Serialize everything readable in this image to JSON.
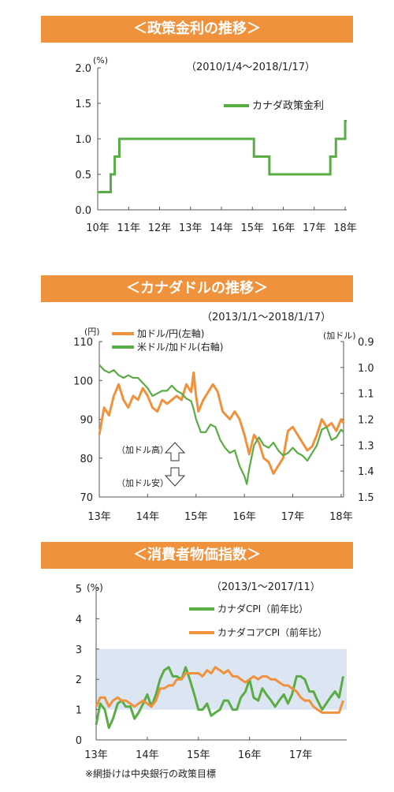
{
  "colors": {
    "banner": "#f0913c",
    "green": "#5aac44",
    "orange": "#f0913c",
    "band": "#dce6f2",
    "text": "#222222"
  },
  "panels": {
    "rate": {
      "banner": "＜政策金利の推移＞",
      "period": "（2010/1/4～2018/1/17）"
    },
    "fx": {
      "banner": "＜カナダドルの推移＞",
      "period": "（2013/1/1～2018/1/17）",
      "arrow_up_label": "（加ドル高）",
      "arrow_down_label": "（加ドル安）"
    },
    "cpi": {
      "banner": "＜消費者物価指数＞",
      "period": "（2013/1～2017/11）",
      "note": "※網掛けは中央銀行の政策目標"
    }
  },
  "chart_data": [
    {
      "type": "line",
      "title": "＜政策金利の推移＞",
      "ylabel": "(%)",
      "ylim": [
        0,
        2.0
      ],
      "yticks": [
        "0.0",
        "0.5",
        "1.0",
        "1.5",
        "2.0"
      ],
      "xticks": [
        "10年",
        "11年",
        "12年",
        "13年",
        "14年",
        "15年",
        "16年",
        "17年",
        "18年"
      ],
      "step": true,
      "series": [
        {
          "name": "カナダ政策金利",
          "color": "#5aac44",
          "points": [
            [
              2010.0,
              0.25
            ],
            [
              2010.42,
              0.5
            ],
            [
              2010.55,
              0.75
            ],
            [
              2010.7,
              1.0
            ],
            [
              2015.05,
              0.75
            ],
            [
              2015.55,
              0.5
            ],
            [
              2017.52,
              0.75
            ],
            [
              2017.7,
              1.0
            ],
            [
              2018.0,
              1.25
            ],
            [
              2018.05,
              1.25
            ]
          ]
        }
      ]
    },
    {
      "type": "line",
      "title": "＜カナダドルの推移＞",
      "ylabel_left": "(円)",
      "ylabel_right": "(加ドル)",
      "ylim_left": [
        70,
        110
      ],
      "ylim_right": [
        0.9,
        1.5
      ],
      "right_axis_inverted": true,
      "yticks_left": [
        "70",
        "80",
        "90",
        "100",
        "110"
      ],
      "yticks_right": [
        "0.9",
        "1.0",
        "1.1",
        "1.2",
        "1.3",
        "1.4",
        "1.5"
      ],
      "xticks": [
        "13年",
        "14年",
        "15年",
        "16年",
        "17年",
        "18年"
      ],
      "series": [
        {
          "name": "加ドル/円(左軸)",
          "color": "#f0913c",
          "axis": "left",
          "points": [
            [
              2013.0,
              86
            ],
            [
              2013.1,
              93
            ],
            [
              2013.2,
              91
            ],
            [
              2013.3,
              96
            ],
            [
              2013.4,
              99
            ],
            [
              2013.5,
              95
            ],
            [
              2013.6,
              93
            ],
            [
              2013.7,
              96
            ],
            [
              2013.8,
              95
            ],
            [
              2013.9,
              98
            ],
            [
              2014.0,
              96
            ],
            [
              2014.1,
              93
            ],
            [
              2014.2,
              92
            ],
            [
              2014.3,
              95
            ],
            [
              2014.4,
              94
            ],
            [
              2014.5,
              95
            ],
            [
              2014.6,
              96
            ],
            [
              2014.7,
              95
            ],
            [
              2014.8,
              99
            ],
            [
              2014.9,
              97
            ],
            [
              2014.95,
              102
            ],
            [
              2015.0,
              96
            ],
            [
              2015.05,
              92
            ],
            [
              2015.15,
              95
            ],
            [
              2015.25,
              97
            ],
            [
              2015.35,
              99
            ],
            [
              2015.45,
              97
            ],
            [
              2015.55,
              92
            ],
            [
              2015.7,
              90
            ],
            [
              2015.8,
              92
            ],
            [
              2015.9,
              90
            ],
            [
              2016.0,
              86
            ],
            [
              2016.1,
              81
            ],
            [
              2016.2,
              86
            ],
            [
              2016.3,
              84
            ],
            [
              2016.4,
              80
            ],
            [
              2016.5,
              79
            ],
            [
              2016.6,
              76
            ],
            [
              2016.7,
              78
            ],
            [
              2016.8,
              80
            ],
            [
              2016.9,
              87
            ],
            [
              2017.0,
              88
            ],
            [
              2017.1,
              86
            ],
            [
              2017.2,
              84
            ],
            [
              2017.3,
              82
            ],
            [
              2017.4,
              83
            ],
            [
              2017.5,
              86
            ],
            [
              2017.6,
              90
            ],
            [
              2017.7,
              88
            ],
            [
              2017.8,
              89
            ],
            [
              2017.9,
              87
            ],
            [
              2018.0,
              90
            ],
            [
              2018.05,
              89
            ]
          ]
        },
        {
          "name": "米ドル/加ドル(右軸)",
          "color": "#5aac44",
          "axis": "right",
          "points": [
            [
              2013.0,
              0.99
            ],
            [
              2013.1,
              1.01
            ],
            [
              2013.2,
              1.02
            ],
            [
              2013.3,
              1.01
            ],
            [
              2013.4,
              1.03
            ],
            [
              2013.5,
              1.04
            ],
            [
              2013.6,
              1.03
            ],
            [
              2013.7,
              1.04
            ],
            [
              2013.8,
              1.04
            ],
            [
              2013.9,
              1.06
            ],
            [
              2014.0,
              1.08
            ],
            [
              2014.1,
              1.11
            ],
            [
              2014.2,
              1.1
            ],
            [
              2014.3,
              1.09
            ],
            [
              2014.4,
              1.09
            ],
            [
              2014.5,
              1.07
            ],
            [
              2014.6,
              1.09
            ],
            [
              2014.7,
              1.1
            ],
            [
              2014.8,
              1.12
            ],
            [
              2014.9,
              1.13
            ],
            [
              2014.95,
              1.16
            ],
            [
              2015.0,
              1.2
            ],
            [
              2015.1,
              1.25
            ],
            [
              2015.2,
              1.25
            ],
            [
              2015.3,
              1.22
            ],
            [
              2015.4,
              1.23
            ],
            [
              2015.5,
              1.28
            ],
            [
              2015.6,
              1.31
            ],
            [
              2015.7,
              1.33
            ],
            [
              2015.8,
              1.32
            ],
            [
              2015.9,
              1.38
            ],
            [
              2016.0,
              1.42
            ],
            [
              2016.05,
              1.45
            ],
            [
              2016.1,
              1.39
            ],
            [
              2016.2,
              1.3
            ],
            [
              2016.3,
              1.27
            ],
            [
              2016.4,
              1.3
            ],
            [
              2016.5,
              1.31
            ],
            [
              2016.6,
              1.29
            ],
            [
              2016.7,
              1.32
            ],
            [
              2016.8,
              1.34
            ],
            [
              2016.9,
              1.33
            ],
            [
              2017.0,
              1.31
            ],
            [
              2017.1,
              1.33
            ],
            [
              2017.2,
              1.34
            ],
            [
              2017.3,
              1.36
            ],
            [
              2017.4,
              1.33
            ],
            [
              2017.5,
              1.3
            ],
            [
              2017.6,
              1.24
            ],
            [
              2017.7,
              1.23
            ],
            [
              2017.8,
              1.28
            ],
            [
              2017.9,
              1.27
            ],
            [
              2018.0,
              1.24
            ],
            [
              2018.05,
              1.25
            ]
          ]
        }
      ]
    },
    {
      "type": "line",
      "title": "＜消費者物価指数＞",
      "ylabel": "(%)",
      "ylim": [
        0,
        5
      ],
      "yticks": [
        "0",
        "1",
        "2",
        "3",
        "4",
        "5"
      ],
      "xticks": [
        "13年",
        "14年",
        "15年",
        "16年",
        "17年"
      ],
      "band": [
        1,
        3
      ],
      "series": [
        {
          "name": "カナダCPI（前年比）",
          "color": "#5aac44",
          "points": [
            [
              2013.0,
              0.5
            ],
            [
              2013.08,
              1.2
            ],
            [
              2013.17,
              1.0
            ],
            [
              2013.25,
              0.4
            ],
            [
              2013.33,
              0.7
            ],
            [
              2013.42,
              1.2
            ],
            [
              2013.5,
              1.3
            ],
            [
              2013.58,
              1.1
            ],
            [
              2013.67,
              1.1
            ],
            [
              2013.75,
              0.7
            ],
            [
              2013.83,
              0.9
            ],
            [
              2013.92,
              1.2
            ],
            [
              2014.0,
              1.5
            ],
            [
              2014.08,
              1.1
            ],
            [
              2014.17,
              1.5
            ],
            [
              2014.25,
              2.0
            ],
            [
              2014.33,
              2.3
            ],
            [
              2014.42,
              2.4
            ],
            [
              2014.5,
              2.1
            ],
            [
              2014.58,
              2.1
            ],
            [
              2014.67,
              2.0
            ],
            [
              2014.75,
              2.4
            ],
            [
              2014.83,
              2.0
            ],
            [
              2014.92,
              1.5
            ],
            [
              2015.0,
              1.0
            ],
            [
              2015.08,
              1.0
            ],
            [
              2015.17,
              1.2
            ],
            [
              2015.25,
              0.8
            ],
            [
              2015.33,
              0.9
            ],
            [
              2015.42,
              1.0
            ],
            [
              2015.5,
              1.3
            ],
            [
              2015.58,
              1.3
            ],
            [
              2015.67,
              1.0
            ],
            [
              2015.75,
              1.0
            ],
            [
              2015.83,
              1.4
            ],
            [
              2015.92,
              1.6
            ],
            [
              2016.0,
              2.0
            ],
            [
              2016.08,
              1.4
            ],
            [
              2016.17,
              1.3
            ],
            [
              2016.25,
              1.7
            ],
            [
              2016.33,
              1.5
            ],
            [
              2016.42,
              1.3
            ],
            [
              2016.5,
              1.1
            ],
            [
              2016.58,
              1.3
            ],
            [
              2016.67,
              1.5
            ],
            [
              2016.75,
              1.2
            ],
            [
              2016.83,
              1.5
            ],
            [
              2016.92,
              2.1
            ],
            [
              2017.0,
              2.1
            ],
            [
              2017.08,
              2.0
            ],
            [
              2017.17,
              1.6
            ],
            [
              2017.25,
              1.6
            ],
            [
              2017.33,
              1.3
            ],
            [
              2017.42,
              1.0
            ],
            [
              2017.5,
              1.2
            ],
            [
              2017.58,
              1.4
            ],
            [
              2017.67,
              1.6
            ],
            [
              2017.75,
              1.4
            ],
            [
              2017.83,
              2.1
            ]
          ]
        },
        {
          "name": "カナダコアCPI（前年比）",
          "color": "#f0913c",
          "points": [
            [
              2013.0,
              1.1
            ],
            [
              2013.08,
              1.4
            ],
            [
              2013.17,
              1.4
            ],
            [
              2013.25,
              1.1
            ],
            [
              2013.33,
              1.3
            ],
            [
              2013.42,
              1.4
            ],
            [
              2013.5,
              1.3
            ],
            [
              2013.58,
              1.3
            ],
            [
              2013.67,
              1.2
            ],
            [
              2013.75,
              1.1
            ],
            [
              2013.83,
              1.2
            ],
            [
              2013.92,
              1.3
            ],
            [
              2014.0,
              1.2
            ],
            [
              2014.08,
              1.1
            ],
            [
              2014.17,
              1.3
            ],
            [
              2014.25,
              1.7
            ],
            [
              2014.33,
              1.7
            ],
            [
              2014.42,
              1.8
            ],
            [
              2014.5,
              1.8
            ],
            [
              2014.58,
              2.0
            ],
            [
              2014.67,
              2.0
            ],
            [
              2014.75,
              2.2
            ],
            [
              2014.83,
              2.2
            ],
            [
              2014.92,
              2.2
            ],
            [
              2015.0,
              2.2
            ],
            [
              2015.08,
              2.1
            ],
            [
              2015.17,
              2.3
            ],
            [
              2015.25,
              2.2
            ],
            [
              2015.33,
              2.4
            ],
            [
              2015.42,
              2.3
            ],
            [
              2015.5,
              2.2
            ],
            [
              2015.58,
              2.3
            ],
            [
              2015.67,
              2.1
            ],
            [
              2015.75,
              2.1
            ],
            [
              2015.83,
              2.0
            ],
            [
              2015.92,
              1.9
            ],
            [
              2016.0,
              2.0
            ],
            [
              2016.08,
              2.1
            ],
            [
              2016.17,
              2.0
            ],
            [
              2016.25,
              2.1
            ],
            [
              2016.33,
              2.1
            ],
            [
              2016.42,
              2.0
            ],
            [
              2016.5,
              2.0
            ],
            [
              2016.58,
              1.9
            ],
            [
              2016.67,
              1.8
            ],
            [
              2016.75,
              1.8
            ],
            [
              2016.83,
              1.7
            ],
            [
              2016.92,
              1.6
            ],
            [
              2017.0,
              1.4
            ],
            [
              2017.08,
              1.3
            ],
            [
              2017.17,
              1.3
            ],
            [
              2017.25,
              1.1
            ],
            [
              2017.33,
              1.0
            ],
            [
              2017.42,
              0.9
            ],
            [
              2017.5,
              0.9
            ],
            [
              2017.58,
              0.9
            ],
            [
              2017.67,
              0.9
            ],
            [
              2017.75,
              0.9
            ],
            [
              2017.83,
              1.3
            ]
          ]
        }
      ]
    }
  ]
}
